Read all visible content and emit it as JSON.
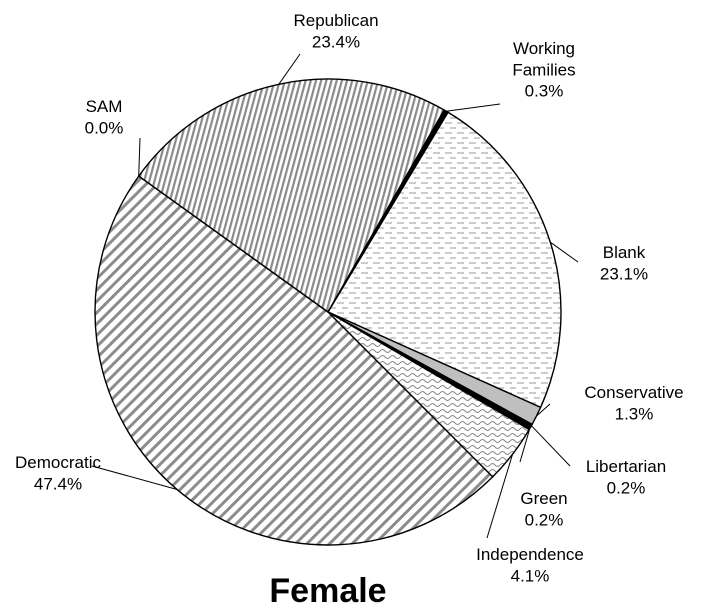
{
  "chart_data": {
    "type": "pie",
    "title": "Female",
    "slices": [
      {
        "name": "Blank",
        "value": 23.1,
        "pct_label": "23.1%",
        "color": "#f2f2f2",
        "pattern": "dash"
      },
      {
        "name": "Conservative",
        "value": 1.3,
        "pct_label": "1.3%",
        "color": "#bfbfbf",
        "pattern": "solid"
      },
      {
        "name": "Libertarian",
        "value": 0.2,
        "pct_label": "0.2%",
        "color": "#000000",
        "pattern": "solid"
      },
      {
        "name": "Green",
        "value": 0.2,
        "pct_label": "0.2%",
        "color": "#000000",
        "pattern": "solid"
      },
      {
        "name": "Independence",
        "value": 4.1,
        "pct_label": "4.1%",
        "color": "#e6e6e6",
        "pattern": "wave"
      },
      {
        "name": "Democratic",
        "value": 47.4,
        "pct_label": "47.4%",
        "color": "#d0d0d0",
        "pattern": "diagonal"
      },
      {
        "name": "SAM",
        "value": 0.0,
        "pct_label": "0.0%",
        "color": "#ffffff",
        "pattern": "solid"
      },
      {
        "name": "Republican",
        "value": 23.4,
        "pct_label": "23.4%",
        "color": "#c8c8c8",
        "pattern": "vertical"
      },
      {
        "name": "Working Families",
        "value": 0.3,
        "pct_label": "0.3%",
        "color": "#000000",
        "pattern": "solid"
      }
    ]
  }
}
